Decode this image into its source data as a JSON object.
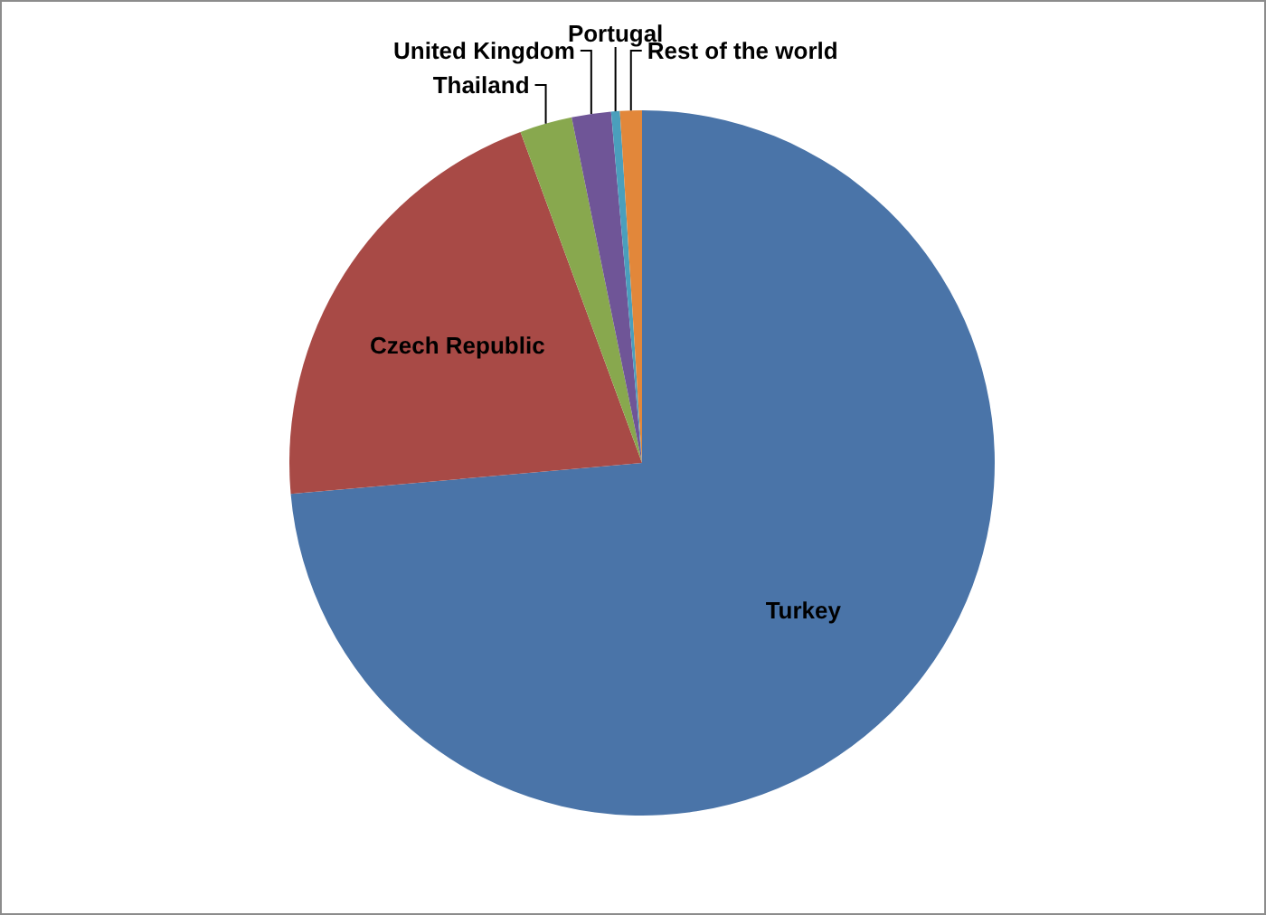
{
  "chart_data": {
    "type": "pie",
    "categories": [
      "Turkey",
      "Czech Republic",
      "Thailand",
      "United Kingdom",
      "Portugal",
      "Rest of the world"
    ],
    "values": [
      73.6,
      20.8,
      2.4,
      1.8,
      0.4,
      1.0
    ],
    "colors": [
      "#4a74a8",
      "#a84a46",
      "#88a84e",
      "#6f5597",
      "#4a9fbc",
      "#e2873a"
    ],
    "legend": false
  }
}
